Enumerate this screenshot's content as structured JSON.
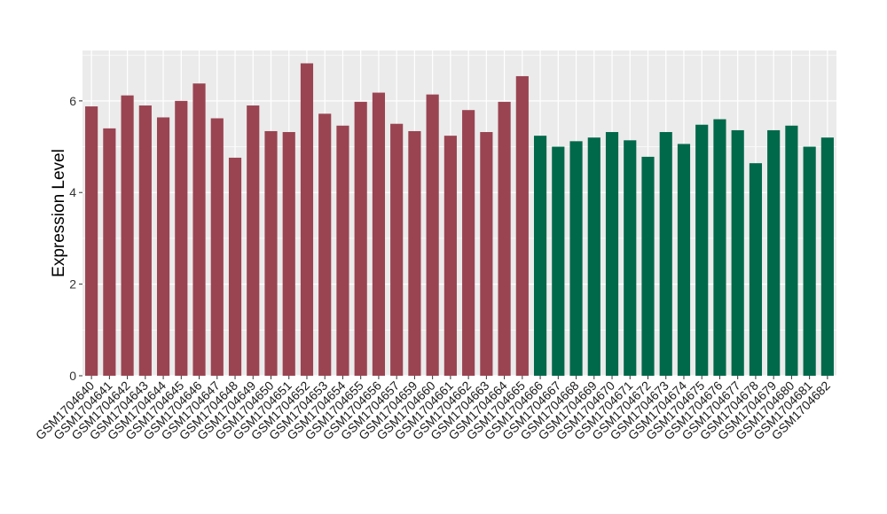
{
  "chart_data": {
    "type": "bar",
    "title": "",
    "xlabel": "",
    "ylabel": "Expression Level",
    "ylim": [
      0,
      7.1
    ],
    "yticks": [
      0,
      2,
      4,
      6
    ],
    "grid": true,
    "legend": "none",
    "colors": {
      "panel_background": "#ebebeb",
      "grid": "#ffffff",
      "group_1": "#9a4452",
      "group_2": "#00694a"
    },
    "categories": [
      "GSM1704640",
      "GSM1704641",
      "GSM1704642",
      "GSM1704643",
      "GSM1704644",
      "GSM1704645",
      "GSM1704646",
      "GSM1704647",
      "GSM1704648",
      "GSM1704649",
      "GSM1704650",
      "GSM1704651",
      "GSM1704652",
      "GSM1704653",
      "GSM1704654",
      "GSM1704655",
      "GSM1704656",
      "GSM1704657",
      "GSM1704659",
      "GSM1704660",
      "GSM1704661",
      "GSM1704662",
      "GSM1704663",
      "GSM1704664",
      "GSM1704665",
      "GSM1704666",
      "GSM1704667",
      "GSM1704668",
      "GSM1704669",
      "GSM1704670",
      "GSM1704671",
      "GSM1704672",
      "GSM1704673",
      "GSM1704674",
      "GSM1704675",
      "GSM1704676",
      "GSM1704677",
      "GSM1704678",
      "GSM1704679",
      "GSM1704680",
      "GSM1704681",
      "GSM1704682"
    ],
    "values": [
      5.88,
      5.4,
      6.12,
      5.9,
      5.64,
      6.0,
      6.38,
      5.62,
      4.76,
      5.9,
      5.34,
      5.32,
      6.82,
      5.72,
      5.46,
      5.98,
      6.18,
      5.5,
      5.34,
      6.14,
      5.24,
      5.8,
      5.32,
      5.98,
      6.54,
      5.24,
      5.0,
      5.12,
      5.2,
      5.32,
      5.14,
      4.78,
      5.32,
      5.06,
      5.48,
      5.6,
      5.36,
      4.64,
      5.36,
      5.46,
      5.0,
      5.2
    ],
    "groups": [
      1,
      1,
      1,
      1,
      1,
      1,
      1,
      1,
      1,
      1,
      1,
      1,
      1,
      1,
      1,
      1,
      1,
      1,
      1,
      1,
      1,
      1,
      1,
      1,
      1,
      2,
      2,
      2,
      2,
      2,
      2,
      2,
      2,
      2,
      2,
      2,
      2,
      2,
      2,
      2,
      2,
      2
    ]
  }
}
